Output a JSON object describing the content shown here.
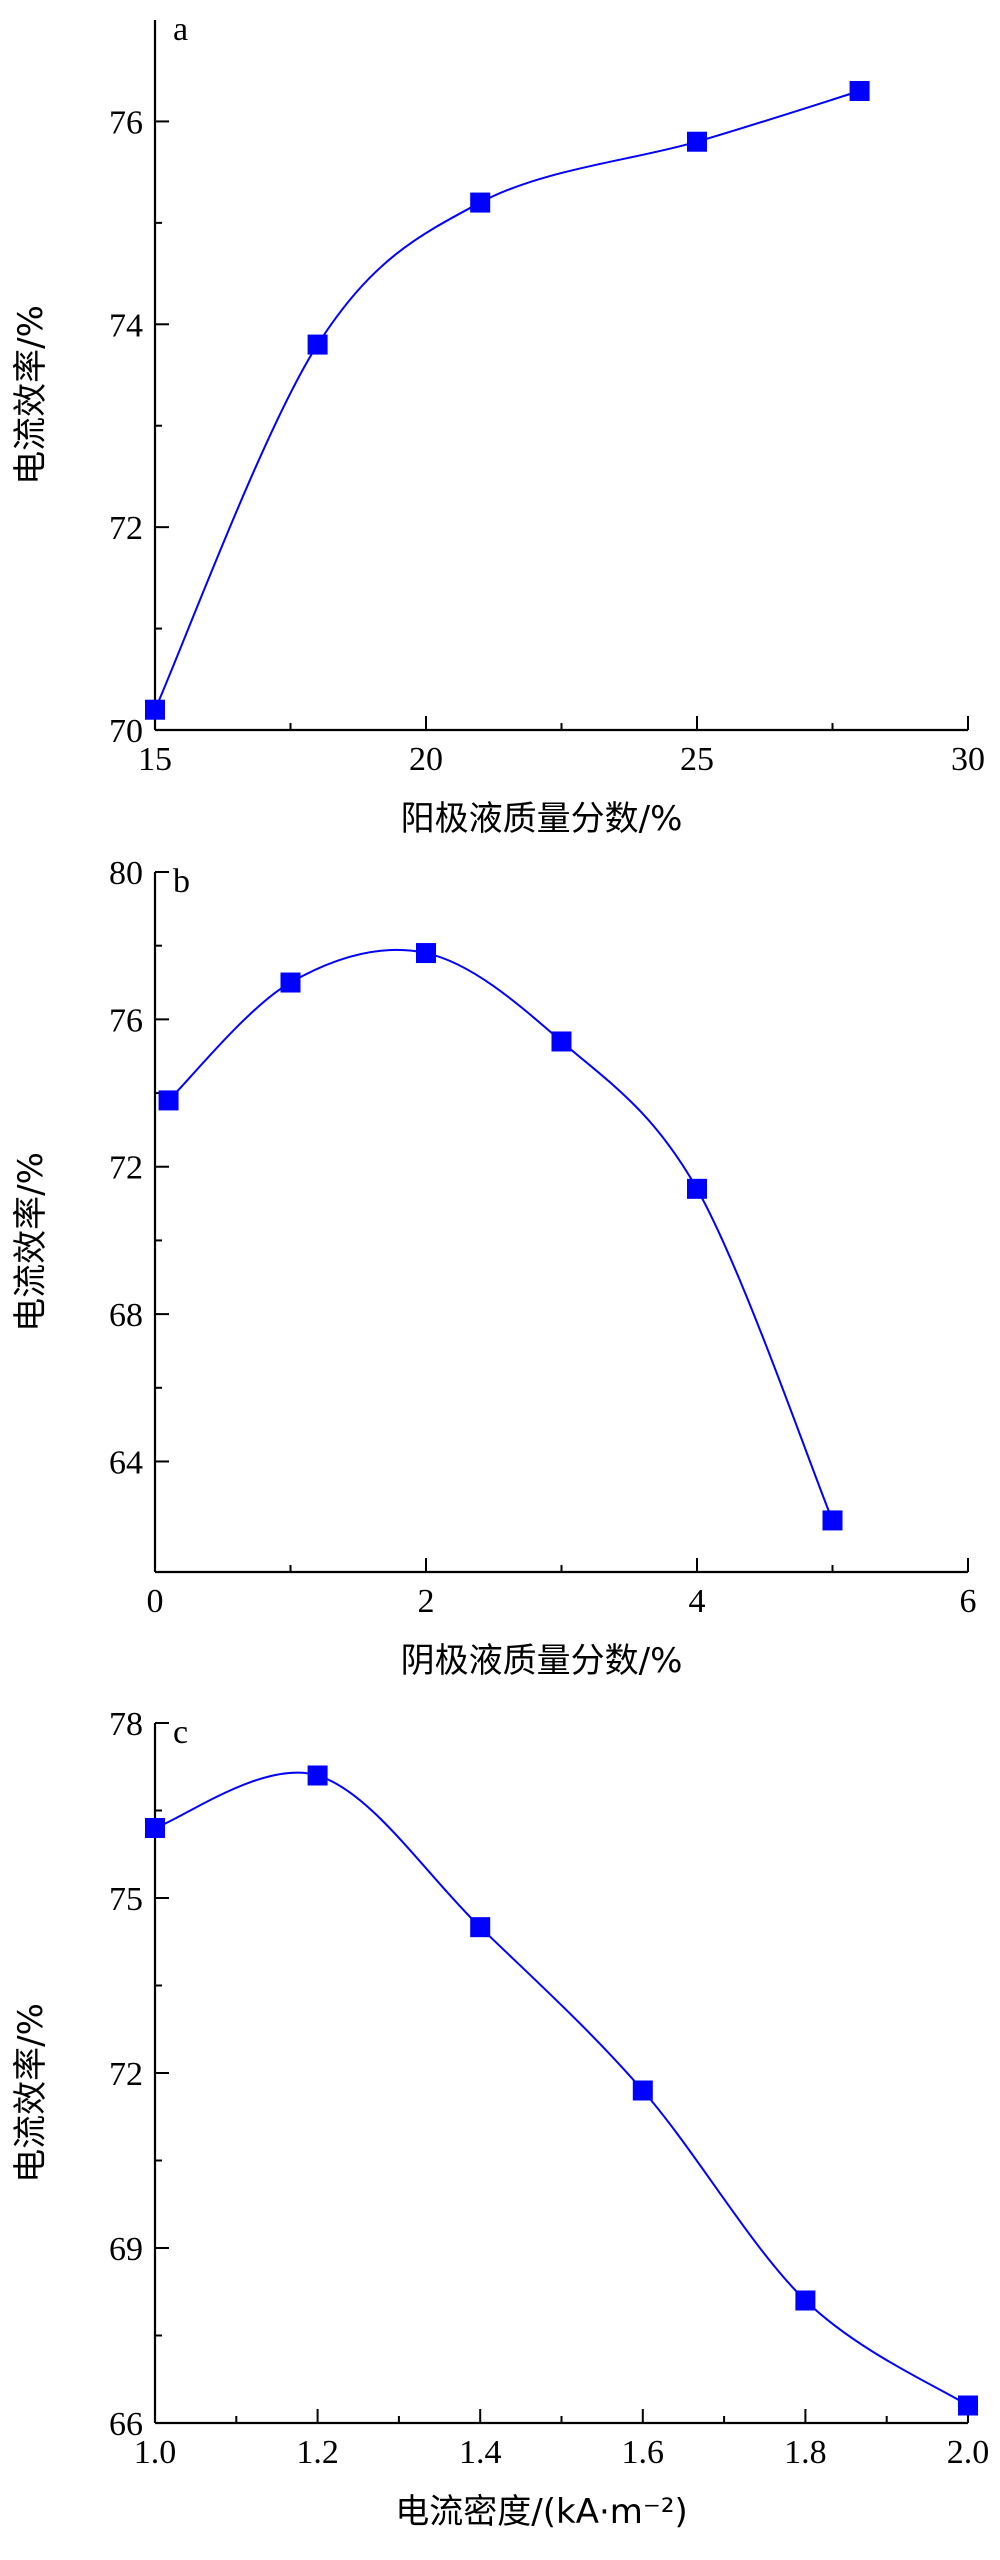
{
  "chart_data": [
    {
      "type": "line",
      "panel_label": "a",
      "xlabel": "阳极液质量分数/%",
      "ylabel": "电流效率/%",
      "xlim": [
        15,
        30
      ],
      "ylim": [
        70,
        77
      ],
      "xticks": [
        15,
        20,
        25,
        30
      ],
      "yticks": [
        70,
        72,
        74,
        76
      ],
      "series": [
        {
          "color": "#0000ff",
          "marker": "square",
          "points": [
            [
              15,
              70.2
            ],
            [
              18,
              73.8
            ],
            [
              21,
              75.2
            ],
            [
              25,
              75.8
            ],
            [
              28,
              76.3
            ]
          ]
        }
      ]
    },
    {
      "type": "line",
      "panel_label": "b",
      "xlabel": "阴极液质量分数/%",
      "ylabel": "电流效率/%",
      "xlim": [
        0,
        6
      ],
      "ylim": [
        61,
        80
      ],
      "xticks": [
        0,
        2,
        4,
        6
      ],
      "yticks": [
        64,
        68,
        72,
        76,
        80
      ],
      "series": [
        {
          "color": "#0000ff",
          "marker": "square",
          "points": [
            [
              0.1,
              73.8
            ],
            [
              1,
              77
            ],
            [
              2,
              77.8
            ],
            [
              3,
              75.4
            ],
            [
              4,
              71.4
            ],
            [
              5,
              62.4
            ]
          ]
        }
      ]
    },
    {
      "type": "line",
      "panel_label": "c",
      "xlabel": "电流密度/(kA·m⁻²)",
      "ylabel": "电流效率/%",
      "xlim": [
        1.0,
        2.0
      ],
      "ylim": [
        66,
        78
      ],
      "xticks": [
        1.0,
        1.2,
        1.4,
        1.6,
        1.8,
        2.0
      ],
      "yticks": [
        66,
        69,
        72,
        75,
        78
      ],
      "series": [
        {
          "color": "#0000ff",
          "marker": "square",
          "points": [
            [
              1.0,
              76.2
            ],
            [
              1.2,
              77.1
            ],
            [
              1.4,
              74.5
            ],
            [
              1.6,
              71.7
            ],
            [
              1.8,
              68.1
            ],
            [
              2.0,
              66.3
            ]
          ]
        }
      ]
    }
  ]
}
